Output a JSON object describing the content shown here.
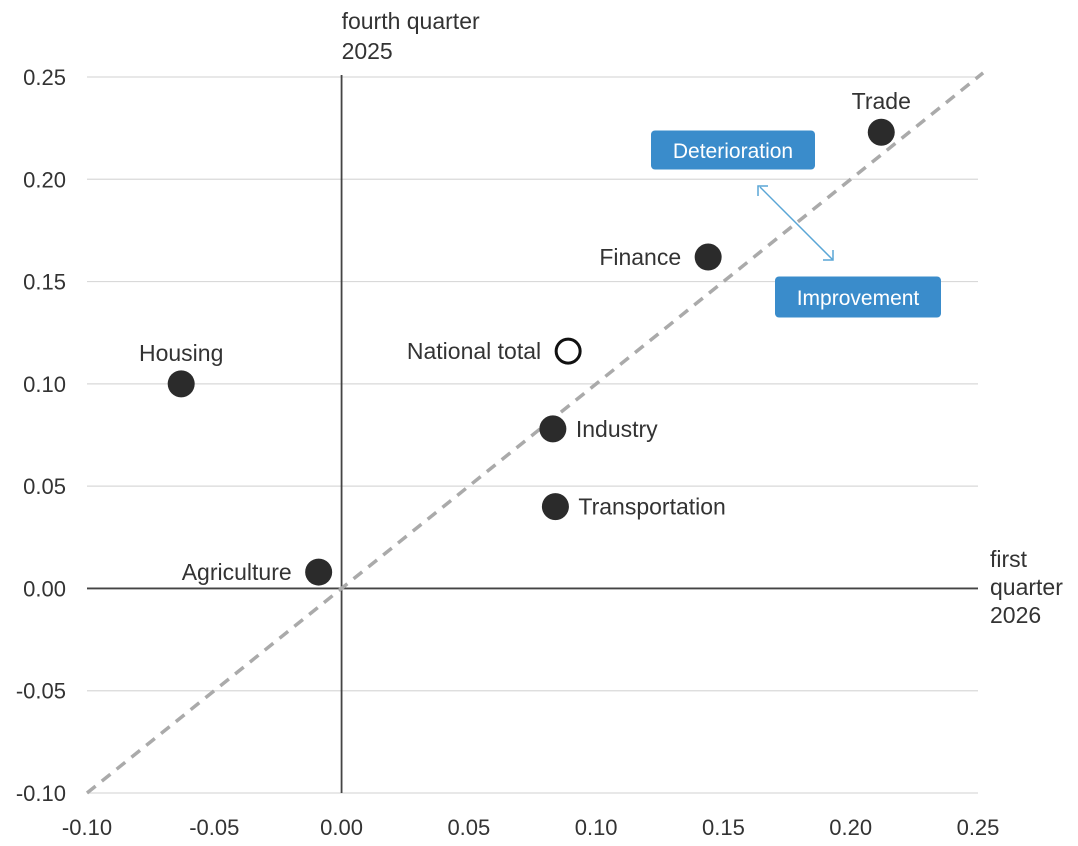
{
  "chart_data": {
    "type": "scatter",
    "x_title_lines": [
      "first",
      "quarter",
      "2026"
    ],
    "y_title_lines": [
      "fourth quarter",
      "2025"
    ],
    "xlim": [
      -0.1,
      0.25
    ],
    "ylim": [
      -0.1,
      0.25
    ],
    "x_ticks": [
      -0.1,
      -0.05,
      0.0,
      0.05,
      0.1,
      0.15,
      0.2,
      0.25
    ],
    "y_ticks": [
      -0.1,
      -0.05,
      0.0,
      0.05,
      0.1,
      0.15,
      0.2,
      0.25
    ],
    "grid": "horizontal",
    "diagonal": "y = x dashed",
    "points": [
      {
        "label": "Trade",
        "x": 0.212,
        "y": 0.223,
        "marker": "filled",
        "label_pos": "top"
      },
      {
        "label": "Finance",
        "x": 0.144,
        "y": 0.162,
        "marker": "filled",
        "label_pos": "left"
      },
      {
        "label": "National total",
        "x": 0.089,
        "y": 0.116,
        "marker": "hollow",
        "label_pos": "left"
      },
      {
        "label": "Housing",
        "x": -0.063,
        "y": 0.1,
        "marker": "filled",
        "label_pos": "top"
      },
      {
        "label": "Industry",
        "x": 0.083,
        "y": 0.078,
        "marker": "filled",
        "label_pos": "right"
      },
      {
        "label": "Transportation",
        "x": 0.084,
        "y": 0.04,
        "marker": "filled",
        "label_pos": "right"
      },
      {
        "label": "Agriculture",
        "x": -0.009,
        "y": 0.008,
        "marker": "filled",
        "label_pos": "left"
      }
    ],
    "annotations": [
      {
        "text": "Deterioration",
        "color": "#3a8ccb"
      },
      {
        "text": "Improvement",
        "color": "#3a8ccb"
      }
    ],
    "colors": {
      "point": "#2b2b2b",
      "grid": "#d9d9d9",
      "diagonal": "#aaaaaa",
      "arrow": "#5aa6d6",
      "badge": "#3a8ccb"
    }
  }
}
